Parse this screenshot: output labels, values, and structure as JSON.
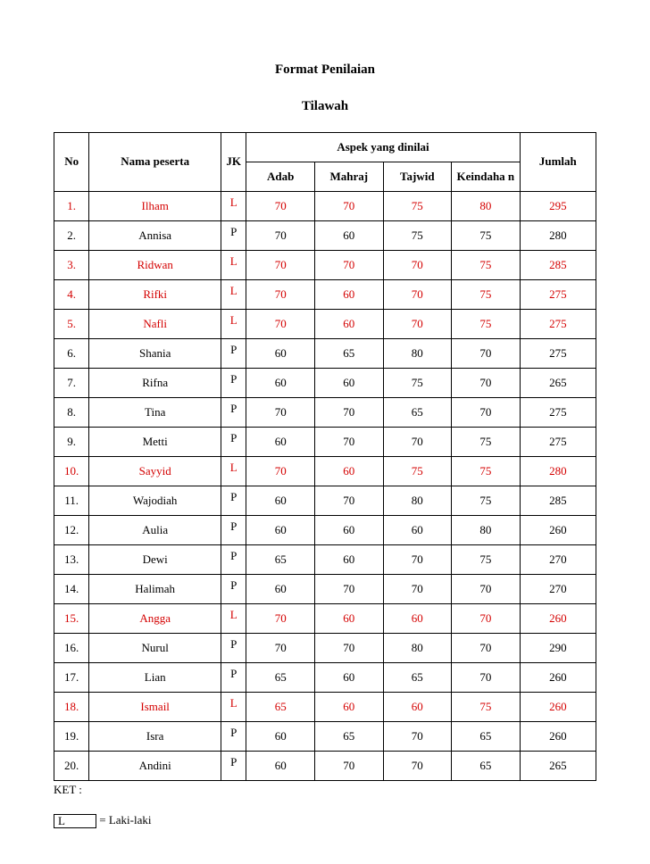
{
  "title": "Format Penilaian",
  "subtitle": "Tilawah",
  "headers": {
    "no": "No",
    "nama": "Nama peserta",
    "jk": "JK",
    "aspek_group": "Aspek yang dinilai",
    "adab": "Adab",
    "mahraj": "Mahraj",
    "tajwid": "Tajwid",
    "keindahan": "Keindaha\nn",
    "jumlah": "Jumlah"
  },
  "rows": [
    {
      "no": "1.",
      "nama": "Ilham",
      "jk": "L",
      "adab": 70,
      "mahraj": 70,
      "tajwid": 75,
      "keindahan": 80,
      "jumlah": 295,
      "red": true
    },
    {
      "no": "2.",
      "nama": "Annisa",
      "jk": "P",
      "adab": 70,
      "mahraj": 60,
      "tajwid": 75,
      "keindahan": 75,
      "jumlah": 280,
      "red": false
    },
    {
      "no": "3.",
      "nama": "Ridwan",
      "jk": "L",
      "adab": 70,
      "mahraj": 70,
      "tajwid": 70,
      "keindahan": 75,
      "jumlah": 285,
      "red": true
    },
    {
      "no": "4.",
      "nama": "Rifki",
      "jk": "L",
      "adab": 70,
      "mahraj": 60,
      "tajwid": 70,
      "keindahan": 75,
      "jumlah": 275,
      "red": true
    },
    {
      "no": "5.",
      "nama": "Nafli",
      "jk": "L",
      "adab": 70,
      "mahraj": 60,
      "tajwid": 70,
      "keindahan": 75,
      "jumlah": 275,
      "red": true
    },
    {
      "no": "6.",
      "nama": "Shania",
      "jk": "P",
      "adab": 60,
      "mahraj": 65,
      "tajwid": 80,
      "keindahan": 70,
      "jumlah": 275,
      "red": false
    },
    {
      "no": "7.",
      "nama": "Rifna",
      "jk": "P",
      "adab": 60,
      "mahraj": 60,
      "tajwid": 75,
      "keindahan": 70,
      "jumlah": 265,
      "red": false
    },
    {
      "no": "8.",
      "nama": "Tina",
      "jk": "P",
      "adab": 70,
      "mahraj": 70,
      "tajwid": 65,
      "keindahan": 70,
      "jumlah": 275,
      "red": false
    },
    {
      "no": "9.",
      "nama": "Metti",
      "jk": "P",
      "adab": 60,
      "mahraj": 70,
      "tajwid": 70,
      "keindahan": 75,
      "jumlah": 275,
      "red": false
    },
    {
      "no": "10.",
      "nama": "Sayyid",
      "jk": "L",
      "adab": 70,
      "mahraj": 60,
      "tajwid": 75,
      "keindahan": 75,
      "jumlah": 280,
      "red": true
    },
    {
      "no": "11.",
      "nama": "Wajodiah",
      "jk": "P",
      "adab": 60,
      "mahraj": 70,
      "tajwid": 80,
      "keindahan": 75,
      "jumlah": 285,
      "red": false
    },
    {
      "no": "12.",
      "nama": "Aulia",
      "jk": "P",
      "adab": 60,
      "mahraj": 60,
      "tajwid": 60,
      "keindahan": 80,
      "jumlah": 260,
      "red": false
    },
    {
      "no": "13.",
      "nama": "Dewi",
      "jk": "P",
      "adab": 65,
      "mahraj": 60,
      "tajwid": 70,
      "keindahan": 75,
      "jumlah": 270,
      "red": false
    },
    {
      "no": "14.",
      "nama": "Halimah",
      "jk": "P",
      "adab": 60,
      "mahraj": 70,
      "tajwid": 70,
      "keindahan": 70,
      "jumlah": 270,
      "red": false
    },
    {
      "no": "15.",
      "nama": "Angga",
      "jk": "L",
      "adab": 70,
      "mahraj": 60,
      "tajwid": 60,
      "keindahan": 70,
      "jumlah": 260,
      "red": true
    },
    {
      "no": "16.",
      "nama": "Nurul",
      "jk": "P",
      "adab": 70,
      "mahraj": 70,
      "tajwid": 80,
      "keindahan": 70,
      "jumlah": 290,
      "red": false
    },
    {
      "no": "17.",
      "nama": "Lian",
      "jk": "P",
      "adab": 65,
      "mahraj": 60,
      "tajwid": 65,
      "keindahan": 70,
      "jumlah": 260,
      "red": false
    },
    {
      "no": "18.",
      "nama": "Ismail",
      "jk": "L",
      "adab": 65,
      "mahraj": 60,
      "tajwid": 60,
      "keindahan": 75,
      "jumlah": 260,
      "red": true
    },
    {
      "no": "19.",
      "nama": "Isra",
      "jk": "P",
      "adab": 60,
      "mahraj": 65,
      "tajwid": 70,
      "keindahan": 65,
      "jumlah": 260,
      "red": false
    },
    {
      "no": "20.",
      "nama": "Andini",
      "jk": "P",
      "adab": 60,
      "mahraj": 70,
      "tajwid": 70,
      "keindahan": 65,
      "jumlah": 265,
      "red": false
    }
  ],
  "ket_label": "KET :",
  "legend_L_code": "L",
  "legend_L_label": "= Laki-laki",
  "colors": {
    "text": "#000000",
    "highlight": "#d40000",
    "background": "#ffffff",
    "border": "#000000"
  },
  "font": {
    "family": "Times New Roman",
    "title_size_pt": 15,
    "cell_size_pt": 13
  }
}
